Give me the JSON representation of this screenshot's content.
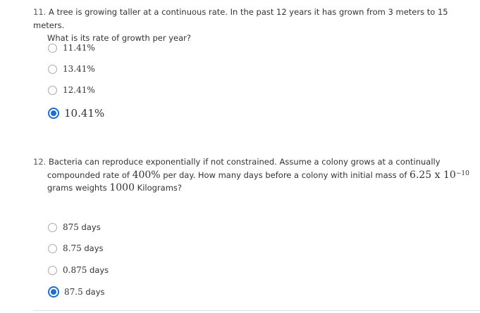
{
  "questions": [
    {
      "number": "11.",
      "text_line1": "A tree is growing taller at a continuous rate. In the past 12 years it has grown from 3 meters to 15 meters.",
      "text_line2": "What is its rate of growth per year?",
      "options": [
        {
          "label": "11.41%",
          "selected": false
        },
        {
          "label": "13.41%",
          "selected": false
        },
        {
          "label": "12.41%",
          "selected": false
        },
        {
          "label": "10.41%",
          "selected": true
        }
      ]
    },
    {
      "number": "12.",
      "line1": "Bacteria can reproduce exponentially if not constrained. Assume a colony grows at a continually",
      "line2_pre": "compounded rate of ",
      "line2_rate": "400%",
      "line2_mid": " per day. How many days before a colony with initial mass of ",
      "line2_mass": "6.25 x 10",
      "line2_exp": "−10",
      "line3_pre": "grams weights ",
      "line3_amount": "1000",
      "line3_post": " Kilograms?",
      "options": [
        {
          "value": "875",
          "unit": " days",
          "selected": false
        },
        {
          "value": "8.75",
          "unit": " days",
          "selected": false
        },
        {
          "value": "0.875",
          "unit": " days",
          "selected": false
        },
        {
          "value": "87.5",
          "unit": " days",
          "selected": true
        }
      ]
    }
  ],
  "colors": {
    "accent": "#1c6fd1",
    "text": "#333333",
    "radio_border": "#aaaaaa"
  }
}
